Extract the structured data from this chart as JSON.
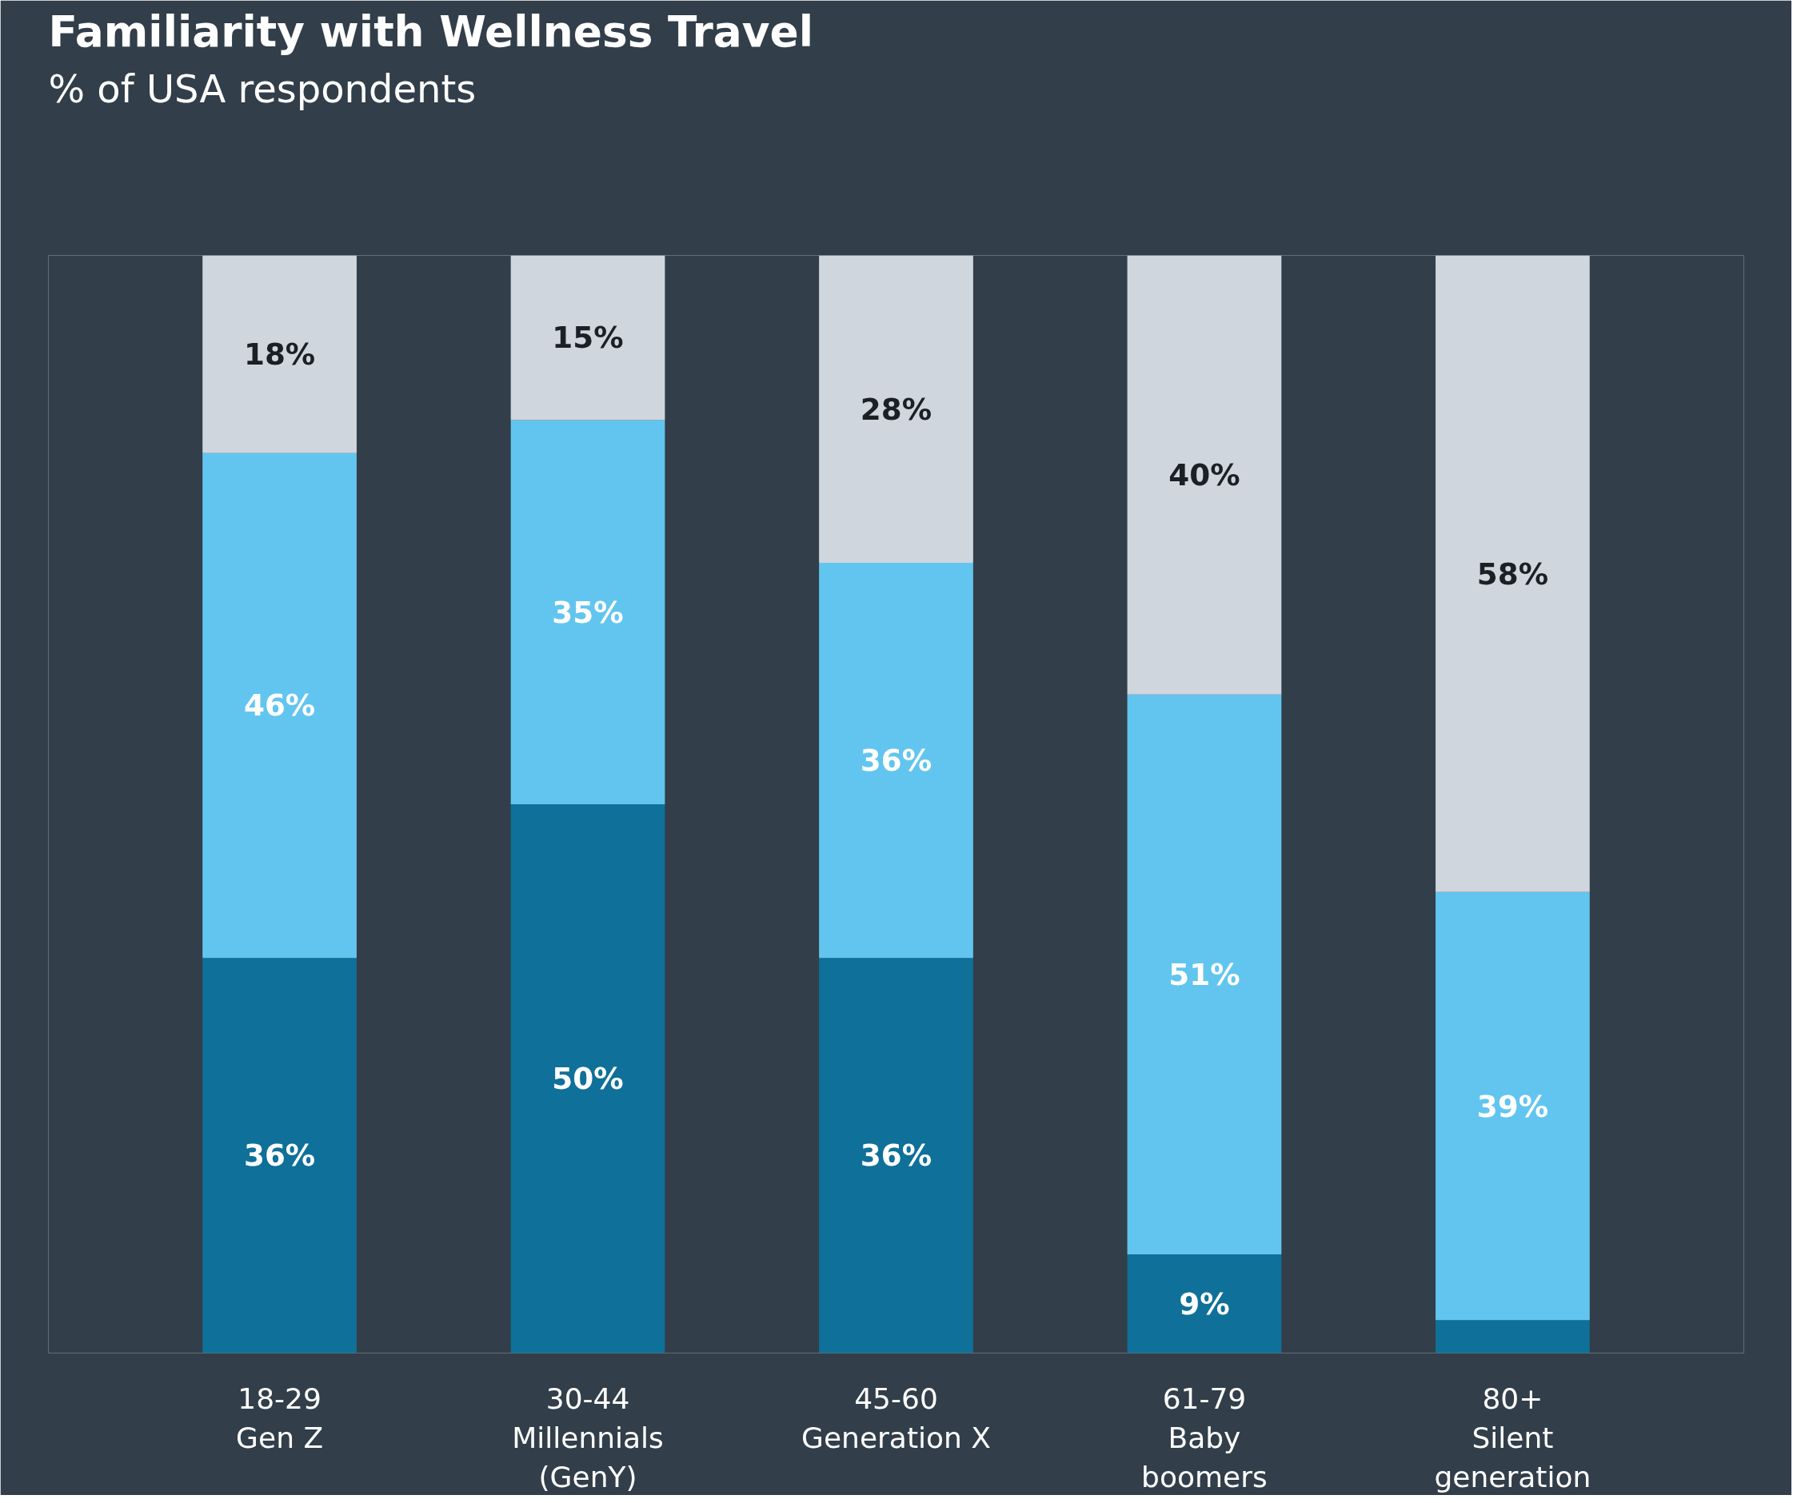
{
  "chart_data": {
    "type": "bar",
    "title": "Familiarity with Wellness Travel",
    "subtitle": "% of USA respondents",
    "categories": [
      "18-29\nGen Z",
      "30-44\nMillennials\n(GenY)",
      "45-60\nGeneration X",
      "61-79\nBaby\nboomers",
      "80+\nSilent\ngeneration"
    ],
    "stacked": true,
    "ylim": [
      0,
      100
    ],
    "tick_labels": "x",
    "grid": false,
    "series": [
      {
        "color": "#0f7099",
        "values": [
          36,
          50,
          36,
          9,
          3
        ],
        "value_labels": [
          "36%",
          "50%",
          "36%",
          "9%",
          null
        ]
      },
      {
        "color": "#62c5ef",
        "values": [
          46,
          35,
          36,
          51,
          39
        ],
        "value_labels": [
          "46%",
          "35%",
          "36%",
          "51%",
          "39%"
        ]
      },
      {
        "color": "#cfd6de",
        "values": [
          18,
          15,
          28,
          40,
          58
        ],
        "value_labels": [
          "18%",
          "15%",
          "28%",
          "40%",
          "58%"
        ]
      }
    ]
  }
}
